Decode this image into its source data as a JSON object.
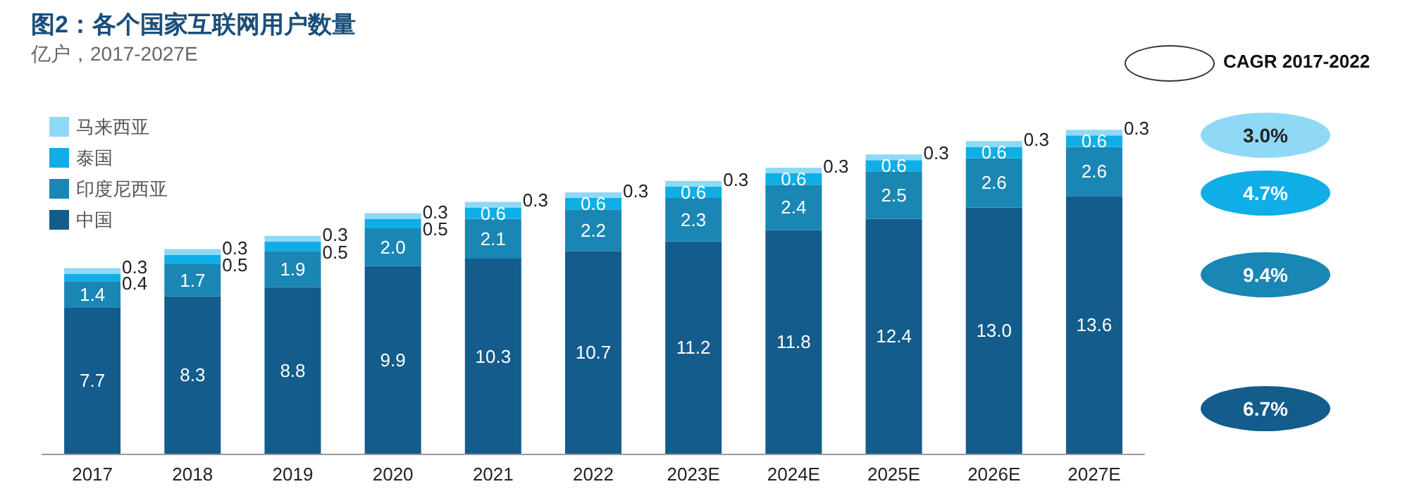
{
  "chart_data": {
    "type": "bar",
    "title": "图2：各个国家互联网用户数量",
    "subtitle": "亿户，2017-2027E",
    "categories": [
      "2017",
      "2018",
      "2019",
      "2020",
      "2021",
      "2022",
      "2023E",
      "2024E",
      "2025E",
      "2026E",
      "2027E"
    ],
    "stacked": true,
    "legend": "top left",
    "series": [
      {
        "name": "中国",
        "color": "#135c8c",
        "values": [
          7.7,
          8.3,
          8.8,
          9.9,
          10.3,
          10.7,
          11.2,
          11.8,
          12.4,
          13.0,
          13.6
        ],
        "value_labels": [
          "7.7",
          "8.3",
          "8.8",
          "9.9",
          "10.3",
          "10.7",
          "11.2",
          "11.8",
          "12.4",
          "13.0",
          "13.6"
        ]
      },
      {
        "name": "印度尼西亚",
        "color": "#1a86b4",
        "values": [
          1.4,
          1.7,
          1.9,
          2.0,
          2.1,
          2.2,
          2.3,
          2.4,
          2.5,
          2.6,
          2.6
        ],
        "value_labels": [
          "1.4",
          "1.7",
          "1.9",
          "2.0",
          "2.1",
          "2.2",
          "2.3",
          "2.4",
          "2.5",
          "2.6",
          "2.6"
        ]
      },
      {
        "name": "泰国",
        "color": "#10aee6",
        "values": [
          0.4,
          0.5,
          0.5,
          0.5,
          0.6,
          0.6,
          0.6,
          0.6,
          0.6,
          0.6,
          0.6
        ],
        "value_labels": [
          "0.4",
          "0.5",
          "0.5",
          "0.5",
          "0.6",
          "0.6",
          "0.6",
          "0.6",
          "0.6",
          "0.6",
          "0.6"
        ]
      },
      {
        "name": "马来西亚",
        "color": "#8fd9f6",
        "values": [
          0.3,
          0.3,
          0.3,
          0.3,
          0.3,
          0.3,
          0.3,
          0.3,
          0.3,
          0.3,
          0.3
        ],
        "value_labels": [
          "0.3",
          "0.3",
          "0.3",
          "0.3",
          "0.3",
          "0.3",
          "0.3",
          "0.3",
          "0.3",
          "0.3",
          "0.3"
        ]
      }
    ],
    "annotations": [
      "CAGR 2017-2022",
      "3.0%",
      "4.7%",
      "9.4%",
      "6.7%"
    ]
  }
}
